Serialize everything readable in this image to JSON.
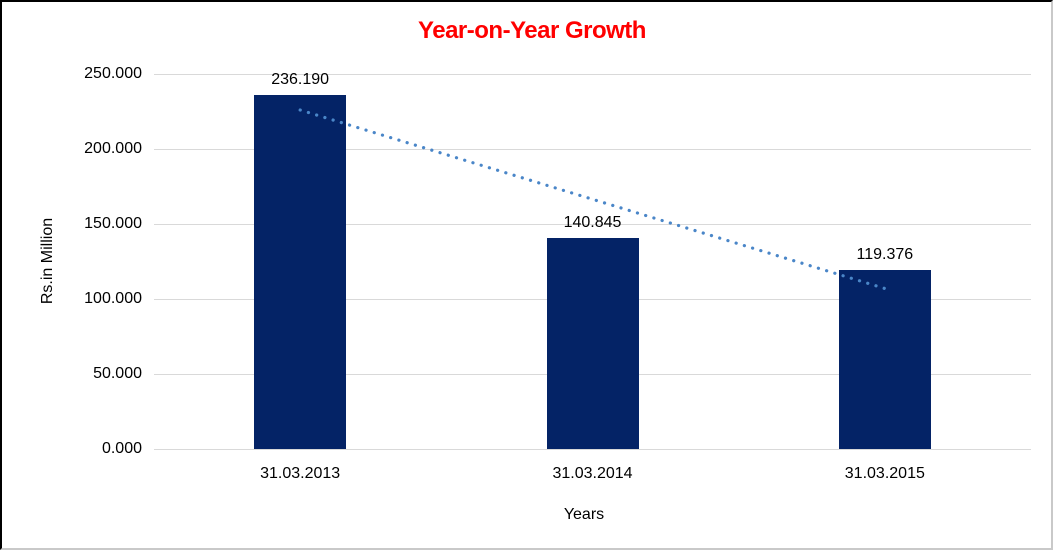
{
  "window": {
    "background": "#FFFFFF",
    "border_dark": "#000000",
    "border_light": "#C9C9C9"
  },
  "chart": {
    "title": "Year-on-Year Growth",
    "title_color": "#FF0000",
    "y_axis_title": "Rs.in Million",
    "x_axis_title": "Years"
  },
  "chart_data": {
    "type": "bar",
    "title": "Year-on-Year Growth",
    "categories": [
      "31.03.2013",
      "31.03.2014",
      "31.03.2015"
    ],
    "values": [
      236.19,
      140.845,
      119.376
    ],
    "value_labels": [
      "236.190",
      "140.845",
      "119.376"
    ],
    "xlabel": "Years",
    "ylabel": "Rs.in Million",
    "ylim": [
      0,
      250
    ],
    "y_tick_interval": 50,
    "y_tick_labels_top_to_bottom": [
      "250.000",
      "200.000",
      "150.000",
      "100.000",
      "50.000",
      "0.000"
    ],
    "grid": "horizontal",
    "legend": "none",
    "bar_color": "#042366",
    "gridline_color": "#D9D9D9",
    "label_color": "#000000",
    "trendline": {
      "style": "dotted",
      "color": "#4A86C8",
      "start": {
        "category_index": 0,
        "value": 226
      },
      "end": {
        "category_index": 2,
        "value": 107
      }
    }
  }
}
